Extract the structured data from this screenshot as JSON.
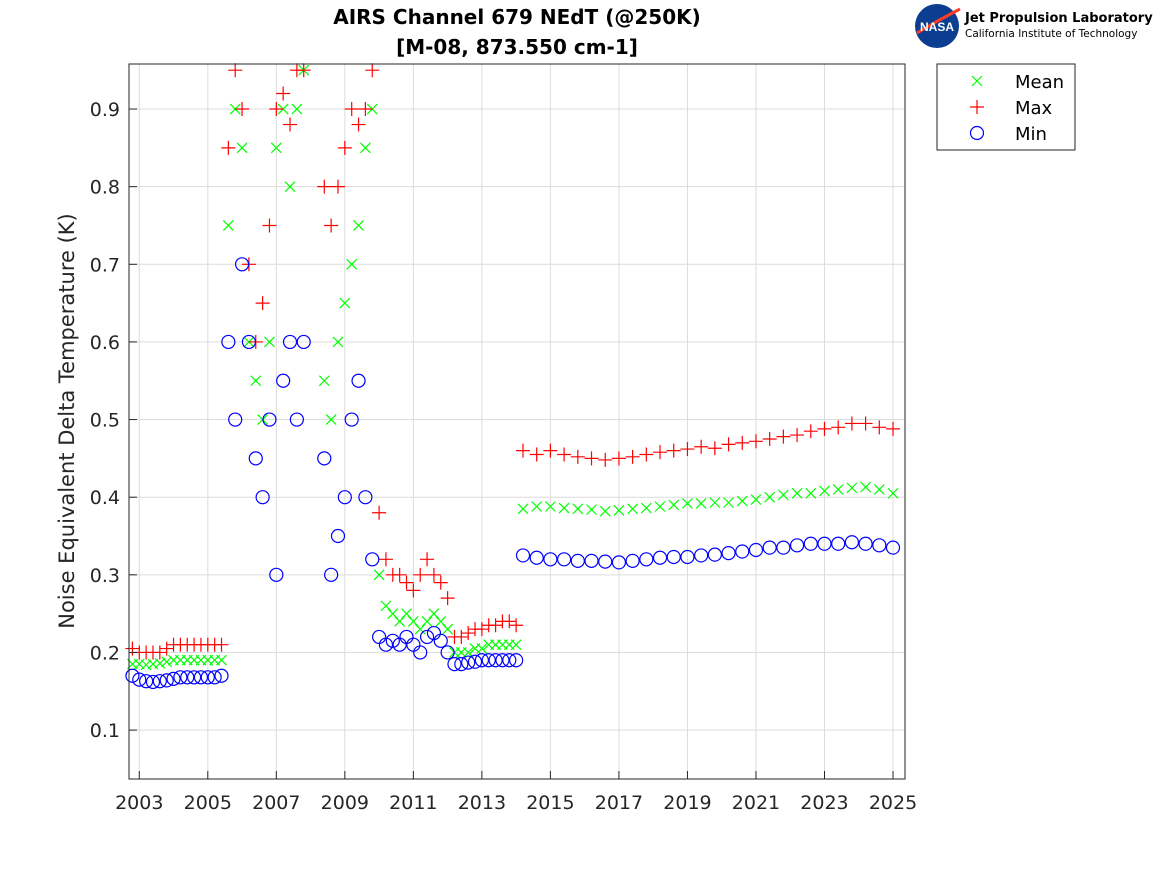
{
  "header": {
    "title_line1": "AIRS Channel 679 NEdT (@250K)",
    "title_line2": "[M-08, 873.550 cm-1]",
    "logo_line1": "Jet Propulsion Laboratory",
    "logo_line2": "California Institute of Technology",
    "logo_badge": "NASA"
  },
  "chart_data": {
    "type": "scatter",
    "title": "AIRS Channel 679 NEdT (@250K) [M-08, 873.550 cm-1]",
    "xlabel": "",
    "ylabel": "Noise Equivalent Delta Temperature (K)",
    "xlim": [
      2002.7,
      2025.35
    ],
    "ylim": [
      0.037,
      0.958
    ],
    "xticks": [
      "2003",
      "2005",
      "2007",
      "2009",
      "2011",
      "2013",
      "2015",
      "2017",
      "2019",
      "2021",
      "2023",
      "2025"
    ],
    "yticks": [
      "0.1",
      "0.2",
      "0.3",
      "0.4",
      "0.5",
      "0.6",
      "0.7",
      "0.8",
      "0.9"
    ],
    "grid": true,
    "legend_position": "outside-top-right",
    "x": [
      2002.8,
      2003.0,
      2003.2,
      2003.4,
      2003.6,
      2003.8,
      2004.0,
      2004.2,
      2004.4,
      2004.6,
      2004.8,
      2005.0,
      2005.2,
      2005.4,
      2005.6,
      2005.8,
      2006.0,
      2006.2,
      2006.4,
      2006.6,
      2006.8,
      2007.0,
      2007.2,
      2007.4,
      2007.6,
      2007.8,
      2008.4,
      2008.6,
      2008.8,
      2009.0,
      2009.2,
      2009.4,
      2009.6,
      2009.8,
      2010.0,
      2010.2,
      2010.4,
      2010.6,
      2010.8,
      2011.0,
      2011.2,
      2011.4,
      2011.6,
      2011.8,
      2012.0,
      2012.2,
      2012.4,
      2012.6,
      2012.8,
      2013.0,
      2013.2,
      2013.4,
      2013.6,
      2013.8,
      2014.0,
      2014.2,
      2014.6,
      2015.0,
      2015.4,
      2015.8,
      2016.2,
      2016.6,
      2017.0,
      2017.4,
      2017.8,
      2018.2,
      2018.6,
      2019.0,
      2019.4,
      2019.8,
      2020.2,
      2020.6,
      2021.0,
      2021.4,
      2021.8,
      2022.2,
      2022.6,
      2023.0,
      2023.4,
      2023.8,
      2024.2,
      2024.6,
      2025.0
    ],
    "series": [
      {
        "name": "Mean",
        "color": "#00ff00",
        "marker": "x",
        "values": [
          0.185,
          0.185,
          0.184,
          0.185,
          0.186,
          0.188,
          0.19,
          0.19,
          0.19,
          0.19,
          0.19,
          0.19,
          0.19,
          0.19,
          0.75,
          0.9,
          0.85,
          0.6,
          0.55,
          0.5,
          0.6,
          0.85,
          0.9,
          0.8,
          0.9,
          0.95,
          0.55,
          0.5,
          0.6,
          0.65,
          0.7,
          0.75,
          0.85,
          0.9,
          0.3,
          0.26,
          0.25,
          0.24,
          0.25,
          0.24,
          0.23,
          0.24,
          0.25,
          0.24,
          0.23,
          0.2,
          0.2,
          0.2,
          0.205,
          0.205,
          0.21,
          0.21,
          0.21,
          0.21,
          0.21,
          0.385,
          0.388,
          0.388,
          0.386,
          0.385,
          0.384,
          0.382,
          0.383,
          0.385,
          0.386,
          0.388,
          0.39,
          0.392,
          0.392,
          0.393,
          0.393,
          0.395,
          0.397,
          0.4,
          0.403,
          0.405,
          0.405,
          0.408,
          0.41,
          0.412,
          0.413,
          0.41,
          0.405
        ]
      },
      {
        "name": "Max",
        "color": "#ff0000",
        "marker": "+",
        "values": [
          0.205,
          0.2,
          0.2,
          0.2,
          0.2,
          0.205,
          0.21,
          0.21,
          0.21,
          0.21,
          0.21,
          0.21,
          0.21,
          0.21,
          0.85,
          0.95,
          0.9,
          0.7,
          0.6,
          0.65,
          0.75,
          0.9,
          0.92,
          0.88,
          0.95,
          0.95,
          0.8,
          0.75,
          0.8,
          0.85,
          0.9,
          0.88,
          0.9,
          0.95,
          0.38,
          0.32,
          0.3,
          0.3,
          0.29,
          0.28,
          0.3,
          0.32,
          0.3,
          0.29,
          0.27,
          0.22,
          0.22,
          0.225,
          0.23,
          0.23,
          0.235,
          0.235,
          0.24,
          0.24,
          0.235,
          0.46,
          0.455,
          0.46,
          0.455,
          0.452,
          0.45,
          0.448,
          0.45,
          0.452,
          0.455,
          0.458,
          0.46,
          0.462,
          0.465,
          0.463,
          0.468,
          0.47,
          0.472,
          0.475,
          0.478,
          0.48,
          0.485,
          0.488,
          0.49,
          0.495,
          0.495,
          0.49,
          0.488
        ]
      },
      {
        "name": "Min",
        "color": "#0000ff",
        "marker": "o",
        "values": [
          0.17,
          0.165,
          0.163,
          0.162,
          0.163,
          0.164,
          0.166,
          0.168,
          0.168,
          0.168,
          0.168,
          0.168,
          0.168,
          0.17,
          0.6,
          0.5,
          0.7,
          0.6,
          0.45,
          0.4,
          0.5,
          0.3,
          0.55,
          0.6,
          0.5,
          0.6,
          0.45,
          0.3,
          0.35,
          0.4,
          0.5,
          0.55,
          0.4,
          0.32,
          0.22,
          0.21,
          0.215,
          0.21,
          0.22,
          0.21,
          0.2,
          0.22,
          0.225,
          0.215,
          0.2,
          0.185,
          0.185,
          0.187,
          0.188,
          0.19,
          0.19,
          0.19,
          0.19,
          0.19,
          0.19,
          0.325,
          0.322,
          0.32,
          0.32,
          0.318,
          0.318,
          0.317,
          0.316,
          0.318,
          0.32,
          0.322,
          0.323,
          0.323,
          0.325,
          0.326,
          0.328,
          0.33,
          0.332,
          0.335,
          0.335,
          0.338,
          0.34,
          0.34,
          0.34,
          0.342,
          0.34,
          0.338,
          0.335
        ]
      }
    ]
  }
}
